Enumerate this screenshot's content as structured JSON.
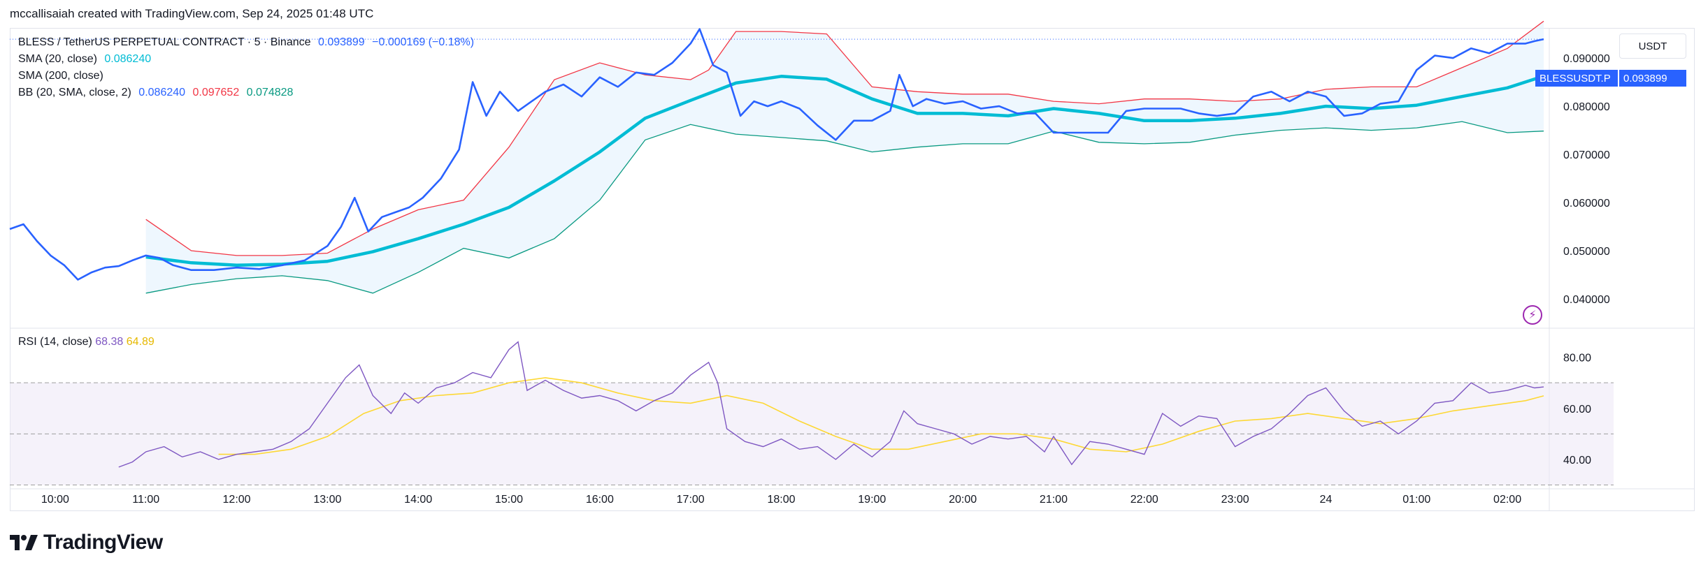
{
  "header": {
    "attribution": "mccallisaiah created with TradingView.com, Sep 24, 2025 01:48 UTC"
  },
  "legend": {
    "symbol_line": "BLESS / TetherUS PERPETUAL CONTRACT · 5 · Binance",
    "last_price": "0.093899",
    "change": "−0.000169 (−0.18%)",
    "sma20_label": "SMA (20, close)",
    "sma20_value": "0.086240",
    "sma200_label": "SMA (200, close)",
    "bb_label": "BB (20, SMA, close, 2)",
    "bb_basis": "0.086240",
    "bb_upper": "0.097652",
    "bb_lower": "0.074828",
    "rsi_label": "RSI (14, close)",
    "rsi_value": "68.38",
    "rsi_ma_value": "64.89"
  },
  "currency_button": "USDT",
  "price_tag": {
    "symbol": "BLESSUSDT.P",
    "price": "0.093899"
  },
  "footer": {
    "brand": "TradingView"
  },
  "colors": {
    "price": "#2962ff",
    "sma20": "#00bcd4",
    "bb_upper": "#f23645",
    "bb_lower": "#089981",
    "bb_fill": "#e3f2fd",
    "rsi": "#7e57c2",
    "rsi_ma": "#fdd835",
    "rsi_band": "#ede7f6"
  },
  "chart_data": [
    {
      "type": "line",
      "title": "BLESS / TetherUS PERPETUAL CONTRACT · 5 · Binance",
      "xlabel": "",
      "ylabel": "",
      "x_ticks": [
        "10:00",
        "11:00",
        "12:00",
        "13:00",
        "14:00",
        "15:00",
        "16:00",
        "17:00",
        "18:00",
        "19:00",
        "20:00",
        "21:00",
        "22:00",
        "23:00",
        "24",
        "01:00",
        "02:00"
      ],
      "y_ticks": [
        "0.040000",
        "0.050000",
        "0.060000",
        "0.070000",
        "0.080000",
        "0.090000"
      ],
      "ylim": [
        0.0345,
        0.0945
      ],
      "xlim": [
        9.5,
        26.4
      ],
      "grid": false,
      "series": [
        {
          "name": "close",
          "x": [
            9.5,
            9.65,
            9.8,
            9.95,
            10.1,
            10.25,
            10.4,
            10.55,
            10.7,
            10.85,
            11.0,
            11.15,
            11.3,
            11.5,
            11.75,
            12.0,
            12.25,
            12.5,
            12.75,
            13.0,
            13.15,
            13.3,
            13.45,
            13.6,
            13.75,
            13.9,
            14.05,
            14.25,
            14.45,
            14.6,
            14.75,
            14.9,
            15.0,
            15.1,
            15.25,
            15.4,
            15.6,
            15.8,
            16.0,
            16.2,
            16.4,
            16.6,
            16.8,
            17.0,
            17.1,
            17.25,
            17.4,
            17.55,
            17.7,
            17.85,
            18.0,
            18.2,
            18.4,
            18.6,
            18.8,
            19.0,
            19.2,
            19.3,
            19.45,
            19.6,
            19.8,
            20.0,
            20.2,
            20.4,
            20.6,
            20.8,
            21.0,
            21.2,
            21.4,
            21.6,
            21.8,
            22.0,
            22.2,
            22.4,
            22.6,
            22.8,
            23.0,
            23.2,
            23.4,
            23.6,
            23.8,
            24.0,
            24.2,
            24.4,
            24.6,
            24.8,
            25.0,
            25.2,
            25.4,
            25.6,
            25.8,
            26.0,
            26.2,
            26.3,
            26.4
          ],
          "values": [
            0.0545,
            0.0555,
            0.052,
            0.049,
            0.047,
            0.044,
            0.0455,
            0.0465,
            0.0468,
            0.048,
            0.049,
            0.0485,
            0.047,
            0.046,
            0.046,
            0.0465,
            0.0462,
            0.047,
            0.048,
            0.051,
            0.055,
            0.061,
            0.054,
            0.057,
            0.058,
            0.059,
            0.061,
            0.065,
            0.071,
            0.085,
            0.078,
            0.083,
            0.081,
            0.079,
            0.081,
            0.083,
            0.0845,
            0.082,
            0.086,
            0.084,
            0.087,
            0.0865,
            0.089,
            0.093,
            0.096,
            0.0885,
            0.087,
            0.078,
            0.081,
            0.08,
            0.081,
            0.0795,
            0.076,
            0.073,
            0.077,
            0.077,
            0.079,
            0.0865,
            0.08,
            0.0815,
            0.0805,
            0.081,
            0.0795,
            0.08,
            0.0785,
            0.0785,
            0.0745,
            0.0745,
            0.0745,
            0.0745,
            0.079,
            0.0795,
            0.0795,
            0.0795,
            0.0785,
            0.078,
            0.0785,
            0.082,
            0.083,
            0.081,
            0.083,
            0.082,
            0.078,
            0.0785,
            0.0805,
            0.081,
            0.0875,
            0.0905,
            0.09,
            0.092,
            0.091,
            0.093,
            0.093,
            0.0935,
            0.093899
          ]
        },
        {
          "name": "SMA (20, close)",
          "x": [
            11.0,
            11.5,
            12.0,
            12.5,
            13.0,
            13.5,
            14.0,
            14.5,
            15.0,
            15.5,
            16.0,
            16.5,
            17.0,
            17.5,
            18.0,
            18.5,
            19.0,
            19.5,
            20.0,
            20.5,
            21.0,
            21.5,
            22.0,
            22.5,
            23.0,
            23.5,
            24.0,
            24.5,
            25.0,
            25.5,
            26.0,
            26.4
          ],
          "values": [
            0.0487,
            0.0475,
            0.047,
            0.0472,
            0.0478,
            0.0498,
            0.0525,
            0.0555,
            0.059,
            0.0645,
            0.0705,
            0.0775,
            0.0812,
            0.0848,
            0.0862,
            0.0856,
            0.0815,
            0.0785,
            0.0785,
            0.078,
            0.0795,
            0.0785,
            0.077,
            0.077,
            0.0775,
            0.0785,
            0.08,
            0.0795,
            0.0802,
            0.082,
            0.0838,
            0.08624
          ]
        },
        {
          "name": "BB upper",
          "x": [
            11.0,
            11.5,
            12.0,
            12.5,
            13.0,
            13.5,
            14.0,
            14.5,
            15.0,
            15.5,
            16.0,
            16.5,
            17.0,
            17.2,
            17.5,
            18.0,
            18.5,
            19.0,
            19.5,
            20.0,
            20.5,
            21.0,
            21.5,
            22.0,
            22.5,
            23.0,
            23.5,
            24.0,
            24.5,
            25.0,
            25.5,
            26.0,
            26.4
          ],
          "values": [
            0.0565,
            0.05,
            0.049,
            0.049,
            0.0495,
            0.0545,
            0.0585,
            0.0605,
            0.0715,
            0.0855,
            0.089,
            0.0865,
            0.0855,
            0.0875,
            0.0955,
            0.0955,
            0.095,
            0.084,
            0.083,
            0.0825,
            0.0825,
            0.081,
            0.0805,
            0.0815,
            0.0815,
            0.081,
            0.0815,
            0.0835,
            0.084,
            0.084,
            0.088,
            0.092,
            0.09765
          ]
        },
        {
          "name": "BB lower",
          "x": [
            11.0,
            11.5,
            12.0,
            12.5,
            13.0,
            13.5,
            14.0,
            14.5,
            15.0,
            15.5,
            16.0,
            16.5,
            17.0,
            17.5,
            18.0,
            18.5,
            19.0,
            19.5,
            20.0,
            20.5,
            21.0,
            21.5,
            22.0,
            22.5,
            23.0,
            23.5,
            24.0,
            24.5,
            25.0,
            25.5,
            26.0,
            26.4
          ],
          "values": [
            0.0412,
            0.043,
            0.0442,
            0.0448,
            0.0438,
            0.0412,
            0.0455,
            0.0505,
            0.0485,
            0.0525,
            0.0605,
            0.073,
            0.0762,
            0.0742,
            0.0735,
            0.0728,
            0.0705,
            0.0715,
            0.0722,
            0.0722,
            0.0748,
            0.0725,
            0.0722,
            0.0725,
            0.074,
            0.075,
            0.0755,
            0.075,
            0.0755,
            0.0768,
            0.0745,
            0.07483
          ]
        }
      ]
    },
    {
      "type": "line",
      "title": "RSI (14, close)",
      "xlabel": "",
      "ylabel": "",
      "y_ticks": [
        "40.00",
        "60.00",
        "80.00"
      ],
      "ylim": [
        28.5,
        90
      ],
      "bands": {
        "upper": 70,
        "middle": 50,
        "lower": 30
      },
      "grid": false,
      "series": [
        {
          "name": "RSI",
          "x": [
            10.7,
            10.85,
            11.0,
            11.2,
            11.4,
            11.6,
            11.8,
            12.0,
            12.2,
            12.4,
            12.6,
            12.8,
            13.0,
            13.2,
            13.35,
            13.5,
            13.7,
            13.85,
            14.0,
            14.2,
            14.4,
            14.6,
            14.8,
            15.0,
            15.1,
            15.2,
            15.4,
            15.6,
            15.8,
            16.0,
            16.2,
            16.4,
            16.6,
            16.8,
            17.0,
            17.2,
            17.3,
            17.4,
            17.6,
            17.8,
            18.0,
            18.2,
            18.4,
            18.6,
            18.8,
            19.0,
            19.2,
            19.35,
            19.5,
            19.7,
            19.9,
            20.1,
            20.3,
            20.5,
            20.7,
            20.9,
            21.0,
            21.2,
            21.4,
            21.6,
            21.8,
            22.0,
            22.2,
            22.4,
            22.6,
            22.8,
            23.0,
            23.2,
            23.4,
            23.6,
            23.8,
            24.0,
            24.2,
            24.4,
            24.6,
            24.8,
            25.0,
            25.2,
            25.4,
            25.6,
            25.8,
            26.0,
            26.2,
            26.3,
            26.4
          ],
          "values": [
            37,
            39,
            43,
            45,
            41,
            43,
            40,
            42,
            43,
            44,
            47,
            52,
            62,
            72,
            77,
            65,
            58,
            66,
            62,
            68,
            70,
            74,
            72,
            83,
            86,
            67,
            71,
            67,
            64,
            65,
            63,
            59,
            63,
            66,
            73,
            78,
            70,
            52,
            47,
            45,
            48,
            44,
            45,
            40,
            46,
            41,
            47,
            59,
            54,
            52,
            50,
            46,
            49,
            48,
            49,
            43,
            49,
            38,
            47,
            46,
            44,
            42,
            58,
            53,
            57,
            56,
            45,
            49,
            52,
            58,
            65,
            68,
            59,
            53,
            55,
            50,
            55,
            62,
            63,
            70,
            66,
            67,
            69,
            68,
            68.38
          ]
        },
        {
          "name": "RSI-based MA",
          "x": [
            11.8,
            12.2,
            12.6,
            13.0,
            13.4,
            13.8,
            14.2,
            14.6,
            15.0,
            15.4,
            15.8,
            16.2,
            16.6,
            17.0,
            17.4,
            17.8,
            18.2,
            18.6,
            19.0,
            19.4,
            19.8,
            20.2,
            20.6,
            21.0,
            21.4,
            21.8,
            22.2,
            22.6,
            23.0,
            23.4,
            23.8,
            24.2,
            24.6,
            25.0,
            25.4,
            25.8,
            26.2,
            26.4
          ],
          "values": [
            42,
            42,
            44,
            49,
            58,
            63,
            65,
            66,
            70,
            72,
            70,
            66,
            63,
            62,
            65,
            62,
            55,
            49,
            44,
            44,
            47,
            50,
            50,
            48,
            44,
            43,
            46,
            51,
            55,
            56,
            58,
            56,
            54,
            56,
            59,
            61,
            63,
            64.89
          ]
        }
      ]
    }
  ]
}
